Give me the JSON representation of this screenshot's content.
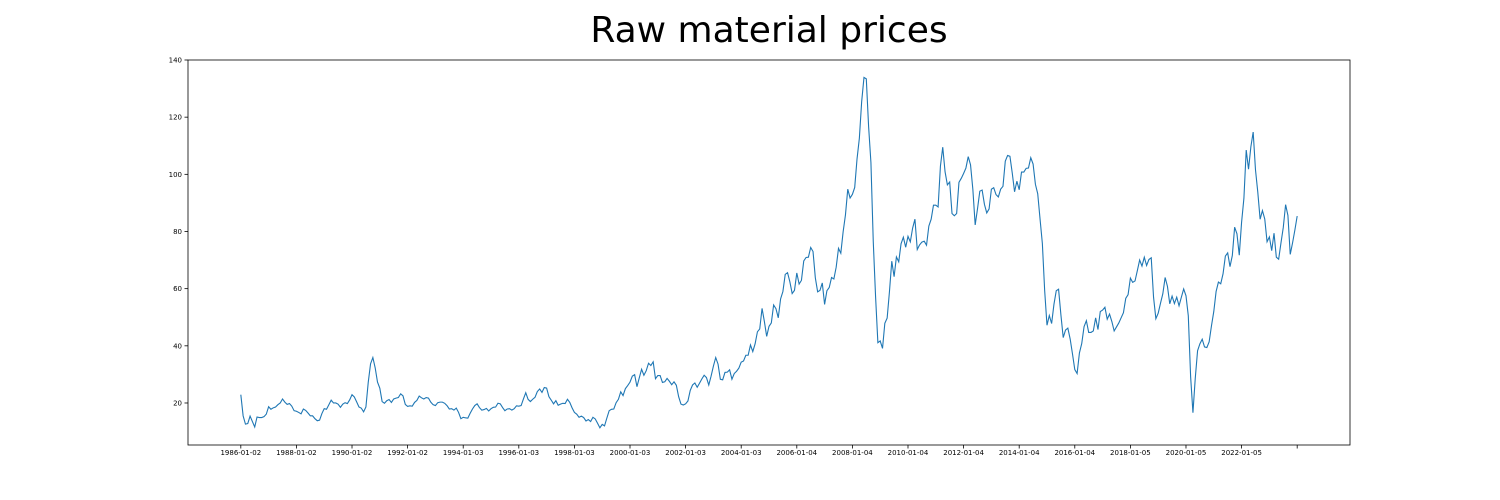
{
  "chart_data": {
    "type": "line",
    "title": "Raw material prices",
    "categories": [
      "1986-01-02",
      null,
      null,
      null,
      null,
      null,
      null,
      null,
      null,
      null,
      null,
      null,
      null,
      null,
      null,
      null,
      null,
      null,
      null,
      null,
      null,
      null,
      null,
      null,
      "1988-01-02",
      null,
      null,
      null,
      null,
      null,
      null,
      null,
      null,
      null,
      null,
      null,
      null,
      null,
      null,
      null,
      null,
      null,
      null,
      null,
      null,
      null,
      null,
      null,
      "1990-01-02",
      null,
      null,
      null,
      null,
      null,
      null,
      null,
      null,
      null,
      null,
      null,
      null,
      null,
      null,
      null,
      null,
      null,
      null,
      null,
      null,
      null,
      null,
      null,
      "1992-01-02",
      null,
      null,
      null,
      null,
      null,
      null,
      null,
      null,
      null,
      null,
      null,
      null,
      null,
      null,
      null,
      null,
      null,
      null,
      null,
      null,
      null,
      null,
      null,
      "1994-01-03",
      null,
      null,
      null,
      null,
      null,
      null,
      null,
      null,
      null,
      null,
      null,
      null,
      null,
      null,
      null,
      null,
      null,
      null,
      null,
      null,
      null,
      null,
      null,
      "1996-01-03",
      null,
      null,
      null,
      null,
      null,
      null,
      null,
      null,
      null,
      null,
      null,
      null,
      null,
      null,
      null,
      null,
      null,
      null,
      null,
      null,
      null,
      null,
      null,
      "1998-01-03",
      null,
      null,
      null,
      null,
      null,
      null,
      null,
      null,
      null,
      null,
      null,
      null,
      null,
      null,
      null,
      null,
      null,
      null,
      null,
      null,
      null,
      null,
      null,
      "2000-01-03",
      null,
      null,
      null,
      null,
      null,
      null,
      null,
      null,
      null,
      null,
      null,
      null,
      null,
      null,
      null,
      null,
      null,
      null,
      null,
      null,
      null,
      null,
      null,
      "2002-01-03",
      null,
      null,
      null,
      null,
      null,
      null,
      null,
      null,
      null,
      null,
      null,
      null,
      null,
      null,
      null,
      null,
      null,
      null,
      null,
      null,
      null,
      null,
      null,
      "2004-01-03",
      null,
      null,
      null,
      null,
      null,
      null,
      null,
      null,
      null,
      null,
      null,
      null,
      null,
      null,
      null,
      null,
      null,
      null,
      null,
      null,
      null,
      null,
      null,
      "2006-01-04",
      null,
      null,
      null,
      null,
      null,
      null,
      null,
      null,
      null,
      null,
      null,
      null,
      null,
      null,
      null,
      null,
      null,
      null,
      null,
      null,
      null,
      null,
      null,
      "2008-01-04",
      null,
      null,
      null,
      null,
      null,
      null,
      null,
      null,
      null,
      null,
      null,
      null,
      null,
      null,
      null,
      null,
      null,
      null,
      null,
      null,
      null,
      null,
      null,
      "2010-01-04",
      null,
      null,
      null,
      null,
      null,
      null,
      null,
      null,
      null,
      null,
      null,
      null,
      null,
      null,
      null,
      null,
      null,
      null,
      null,
      null,
      null,
      null,
      null,
      "2012-01-04",
      null,
      null,
      null,
      null,
      null,
      null,
      null,
      null,
      null,
      null,
      null,
      null,
      null,
      null,
      null,
      null,
      null,
      null,
      null,
      null,
      null,
      null,
      null,
      "2014-01-04",
      null,
      null,
      null,
      null,
      null,
      null,
      null,
      null,
      null,
      null,
      null,
      null,
      null,
      null,
      null,
      null,
      null,
      null,
      null,
      null,
      null,
      null,
      null,
      "2016-01-04",
      null,
      null,
      null,
      null,
      null,
      null,
      null,
      null,
      null,
      null,
      null,
      null,
      null,
      null,
      null,
      null,
      null,
      null,
      null,
      null,
      null,
      null,
      null,
      "2018-01-05",
      null,
      null,
      null,
      null,
      null,
      null,
      null,
      null,
      null,
      null,
      null,
      null,
      null,
      null,
      null,
      null,
      null,
      null,
      null,
      null,
      null,
      null,
      null,
      "2020-01-05",
      null,
      null,
      null,
      null,
      null,
      null,
      null,
      null,
      null,
      null,
      null,
      null,
      null,
      null,
      null,
      null,
      null,
      null,
      null,
      null,
      null,
      null,
      null,
      "2022-01-05",
      null,
      null,
      null,
      null,
      null,
      null,
      null,
      null,
      null,
      null,
      null,
      null,
      null,
      null,
      null,
      null,
      null,
      null,
      null,
      null,
      null,
      null,
      null,
      null
    ],
    "values": [
      22.9,
      15.5,
      12.6,
      12.8,
      15.4,
      13.5,
      11.6,
      15.1,
      14.9,
      14.9,
      15.2,
      16.1,
      18.7,
      17.8,
      18.3,
      18.6,
      19.4,
      20.0,
      21.4,
      20.3,
      19.5,
      19.8,
      18.9,
      17.3,
      17.1,
      16.7,
      16.2,
      17.9,
      17.4,
      16.5,
      15.5,
      15.5,
      14.5,
      13.8,
      14.0,
      16.3,
      18.0,
      17.8,
      19.4,
      21.0,
      20.0,
      20.0,
      19.6,
      18.5,
      19.6,
      20.1,
      19.8,
      21.1,
      22.9,
      22.1,
      20.4,
      18.6,
      18.2,
      16.9,
      18.6,
      27.2,
      33.7,
      35.9,
      32.3,
      27.3,
      25.2,
      20.5,
      19.9,
      20.8,
      21.2,
      20.2,
      21.4,
      21.7,
      21.9,
      23.2,
      22.5,
      19.5,
      18.8,
      19.0,
      18.9,
      20.2,
      20.9,
      22.4,
      21.8,
      21.4,
      21.9,
      21.7,
      20.3,
      19.4,
      19.1,
      20.1,
      20.3,
      20.3,
      19.9,
      19.1,
      17.9,
      18.0,
      17.5,
      18.2,
      16.7,
      14.5,
      15.0,
      14.8,
      14.7,
      16.4,
      17.9,
      19.1,
      19.7,
      18.4,
      17.5,
      17.7,
      18.1,
      17.2,
      18.0,
      18.5,
      18.6,
      19.9,
      19.7,
      18.4,
      17.3,
      17.9,
      18.0,
      17.5,
      18.0,
      19.0,
      18.9,
      19.1,
      21.4,
      23.6,
      21.3,
      20.5,
      21.3,
      22.0,
      24.0,
      24.9,
      23.7,
      25.4,
      25.2,
      22.2,
      21.0,
      19.7,
      20.8,
      19.2,
      19.6,
      19.9,
      19.8,
      21.3,
      20.2,
      18.3,
      16.7,
      16.1,
      15.0,
      15.4,
      14.9,
      13.7,
      14.2,
      13.5,
      15.0,
      14.4,
      12.9,
      11.3,
      12.5,
      12.0,
      14.7,
      17.3,
      17.8,
      17.9,
      20.1,
      21.3,
      23.9,
      22.6,
      25.0,
      26.1,
      27.3,
      29.4,
      29.9,
      25.7,
      28.8,
      31.8,
      29.7,
      31.3,
      33.9,
      33.1,
      34.4,
      28.5,
      29.6,
      29.6,
      27.2,
      27.4,
      28.6,
      27.6,
      26.4,
      27.4,
      26.2,
      22.2,
      19.6,
      19.3,
      19.7,
      20.7,
      24.4,
      26.3,
      27.0,
      25.5,
      26.9,
      28.4,
      29.7,
      28.9,
      26.3,
      29.4,
      32.9,
      35.9,
      33.6,
      28.3,
      28.1,
      30.7,
      30.8,
      31.6,
      28.3,
      30.3,
      31.1,
      32.2,
      34.3,
      34.7,
      36.7,
      36.7,
      40.3,
      38.0,
      40.7,
      44.9,
      45.9,
      53.1,
      48.5,
      43.3,
      46.8,
      48.0,
      54.3,
      53.0,
      49.8,
      56.4,
      59.0,
      65.0,
      65.6,
      62.4,
      58.3,
      59.4,
      65.5,
      61.6,
      62.9,
      69.7,
      70.9,
      71.0,
      74.4,
      73.0,
      63.8,
      58.9,
      59.4,
      62.0,
      54.5,
      59.3,
      60.4,
      63.9,
      63.4,
      67.5,
      74.1,
      72.4,
      79.9,
      85.8,
      94.8,
      91.7,
      93.0,
      95.4,
      105.4,
      112.6,
      125.4,
      133.9,
      133.4,
      116.7,
      104.1,
      76.6,
      57.3,
      41.1,
      41.7,
      39.1,
      47.9,
      49.7,
      59.0,
      69.6,
      64.2,
      71.1,
      69.4,
      75.7,
      78.0,
      74.5,
      78.3,
      76.4,
      81.2,
      84.3,
      73.7,
      75.3,
      76.3,
      76.6,
      75.2,
      81.9,
      84.3,
      89.2,
      89.2,
      88.6,
      102.9,
      109.5,
      100.9,
      96.3,
      97.3,
      86.3,
      85.5,
      86.3,
      97.2,
      98.6,
      100.3,
      102.2,
      106.2,
      103.3,
      94.7,
      82.3,
      87.9,
      94.1,
      94.5,
      89.5,
      86.5,
      87.9,
      94.8,
      95.3,
      92.9,
      92.1,
      94.8,
      95.8,
      104.6,
      106.6,
      106.3,
      100.5,
      93.9,
      97.6,
      94.6,
      100.8,
      100.8,
      102.1,
      102.2,
      105.8,
      103.6,
      96.5,
      93.2,
      84.4,
      75.8,
      59.3,
      47.2,
      50.6,
      47.8,
      54.5,
      59.3,
      59.8,
      50.9,
      42.9,
      45.5,
      46.2,
      42.4,
      37.2,
      31.7,
      30.3,
      37.5,
      40.8,
      46.7,
      48.8,
      44.7,
      44.7,
      45.2,
      49.8,
      45.7,
      52.0,
      52.5,
      53.5,
      49.3,
      51.1,
      48.5,
      45.2,
      46.6,
      48.0,
      49.8,
      51.6,
      56.6,
      57.9,
      63.7,
      62.2,
      62.7,
      66.3,
      70.0,
      67.9,
      71.0,
      68.1,
      70.2,
      70.8,
      57.0,
      49.5,
      51.4,
      54.9,
      58.2,
      63.9,
      60.8,
      54.7,
      57.4,
      54.8,
      57.0,
      54.0,
      57.0,
      59.9,
      57.5,
      50.5,
      29.2,
      16.6,
      28.6,
      38.3,
      40.7,
      42.3,
      39.6,
      39.4,
      41.4,
      47.0,
      52.0,
      59.0,
      62.3,
      61.7,
      65.2,
      71.4,
      72.5,
      67.7,
      71.6,
      81.5,
      79.2,
      71.7,
      83.2,
      91.6,
      108.5,
      101.8,
      109.6,
      114.8,
      101.6,
      93.7,
      84.3,
      87.3,
      84.4,
      76.4,
      78.1,
      73.3,
      79.4,
      71.0,
      70.3,
      76.0,
      81.4,
      89.4,
      85.6,
      72.0,
      76.0,
      80.5,
      85.4
    ],
    "color": "#1f77b4",
    "ylim": [
      5.3,
      140
    ],
    "yticks": [
      20,
      40,
      60,
      80,
      100,
      120,
      140
    ]
  }
}
